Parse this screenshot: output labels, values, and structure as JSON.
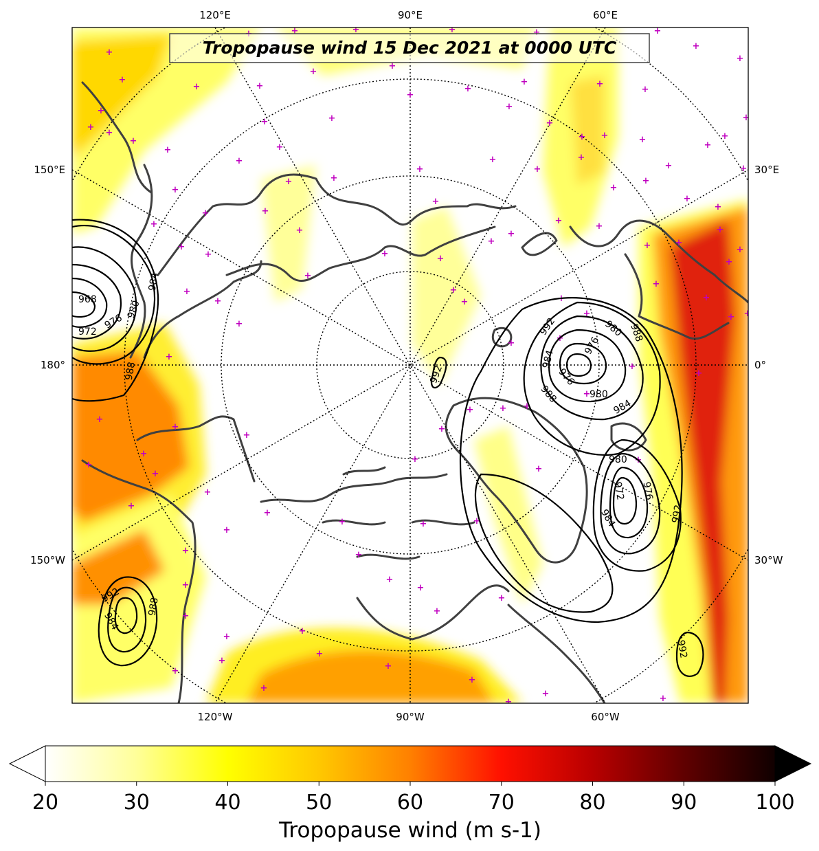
{
  "title": "Tropopause wind 15 Dec 2021 at 0000 UTC",
  "colorbar": {
    "label": "Tropopause wind (m s-1)",
    "ticks": [
      "20",
      "30",
      "40",
      "50",
      "60",
      "70",
      "80",
      "90",
      "100"
    ],
    "min": 20,
    "max": 100,
    "extend": "both"
  },
  "graticule_labels": {
    "top": [
      "120°E",
      "90°E",
      "60°E"
    ],
    "bottom": [
      "120°W",
      "90°W",
      "60°W"
    ],
    "left": [
      "150°E",
      "180°",
      "150°W"
    ],
    "right": [
      "30°E",
      "0°",
      "30°W"
    ]
  },
  "contour_labels": {
    "west_low": [
      "968",
      "972",
      "976",
      "980",
      "984",
      "988"
    ],
    "atlantic_low": [
      "992",
      "984",
      "976",
      "976",
      "980",
      "980",
      "984",
      "988",
      "988"
    ],
    "greenland_low": [
      "980",
      "976",
      "972",
      "984",
      "992"
    ],
    "pacific_low": [
      "992",
      "984",
      "988"
    ],
    "pole": [
      "992"
    ],
    "southeast": [
      "992"
    ]
  },
  "colors": {
    "jet_light": "#ffff66",
    "jet_mid": "#ffd000",
    "jet_strong": "#ff8000",
    "jet_core": "#e01000",
    "coast": "#404040",
    "station_marker": "#c000c0"
  },
  "legend_glyphs": {
    "station_marker": "+"
  }
}
